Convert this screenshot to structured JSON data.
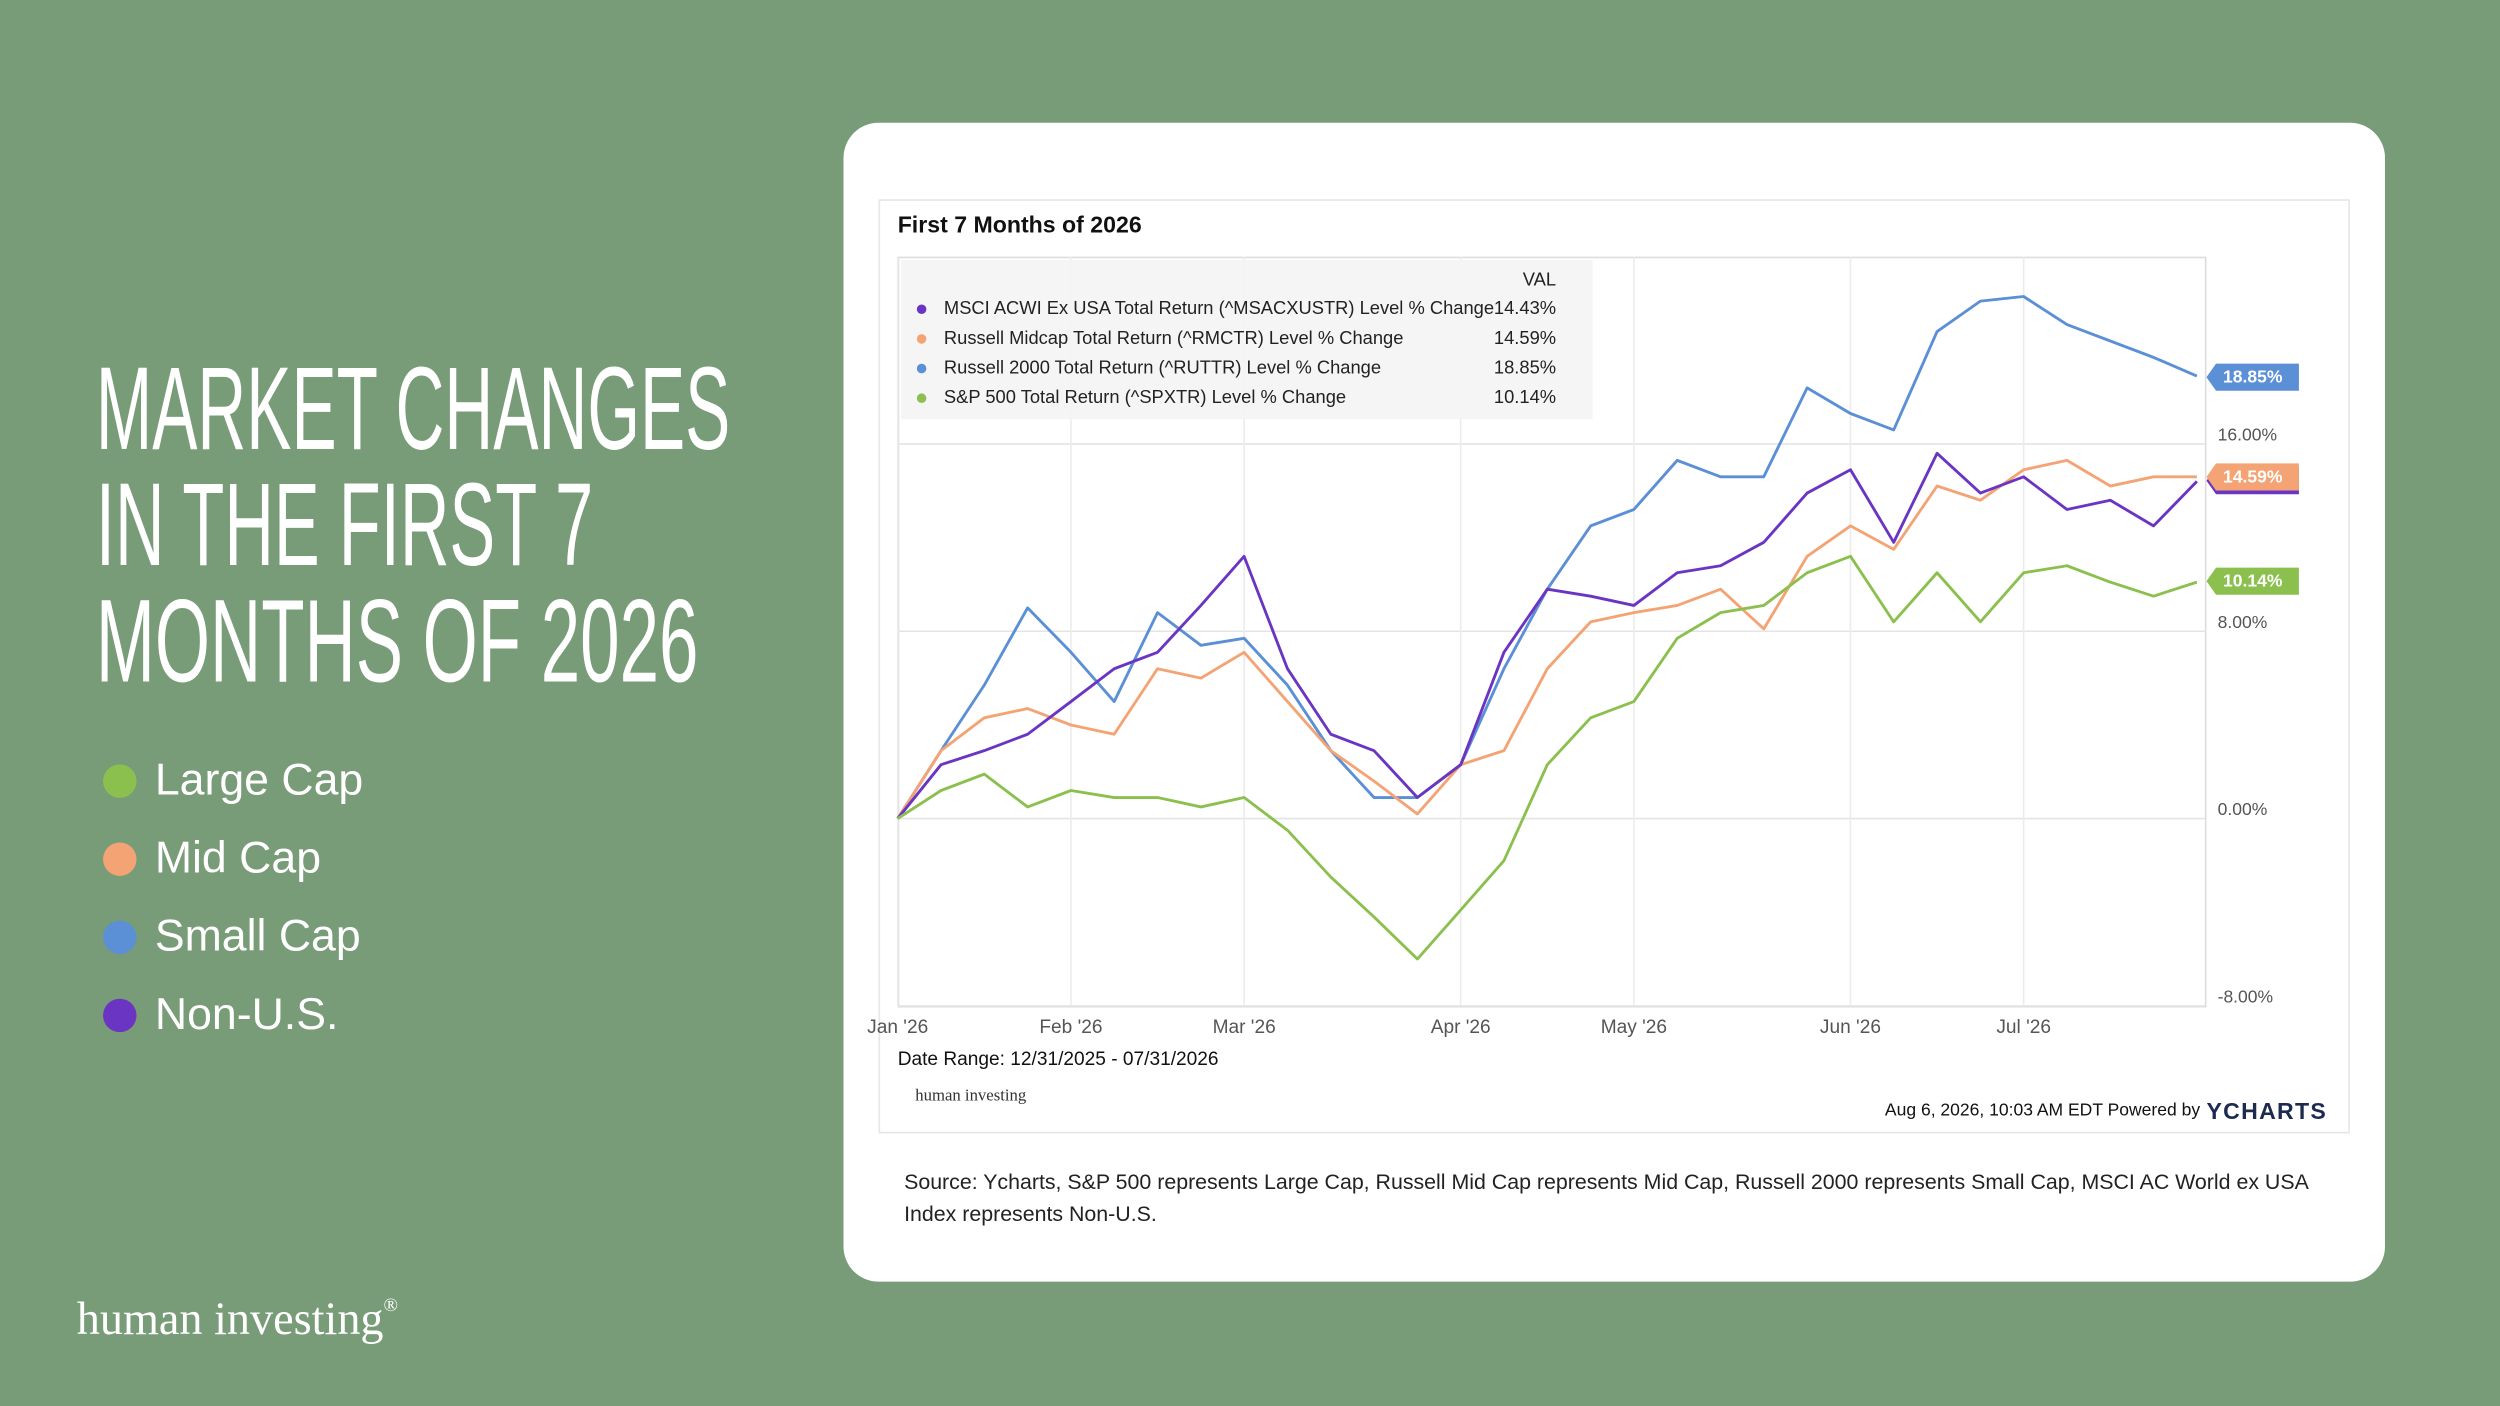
{
  "slide": {
    "title_lines": [
      "MARKET CHANGES",
      "IN THE FIRST 7",
      "MONTHS OF 2026"
    ],
    "legend": [
      {
        "name": "Large Cap",
        "color": "#8cc04e"
      },
      {
        "name": "Mid Cap",
        "color": "#f4a474"
      },
      {
        "name": "Small Cap",
        "color": "#5b8fd6"
      },
      {
        "name": "Non-U.S.",
        "color": "#6a35c2"
      }
    ],
    "source": "Source: Ycharts, S&P 500 represents Large Cap, Russell Mid Cap represents Mid Cap, Russell 2000 represents Small Cap, MSCI AC World ex USA Index represents Non-U.S.",
    "logo": "human investing",
    "logo_mark": "®"
  },
  "chart_data": {
    "type": "line",
    "title": "First 7 Months of 2026",
    "legend_header": "VAL",
    "date_range": "Date Range: 12/31/2025 - 07/31/2026",
    "watermark": "human investing",
    "timestamp": "Aug 6, 2026, 10:03 AM EDT Powered by",
    "brand": "YCHARTS",
    "categories": [
      "Jan '26",
      null,
      null,
      null,
      "Feb '26",
      null,
      null,
      null,
      "Mar '26",
      null,
      null,
      null,
      null,
      "Apr '26",
      null,
      null,
      null,
      "May '26",
      null,
      null,
      null,
      null,
      "Jun '26",
      null,
      null,
      null,
      "Jul '26",
      null,
      null,
      null,
      null
    ],
    "ylim": [
      -8,
      24
    ],
    "yticks": [
      {
        "value": -8,
        "label": "-8.00%"
      },
      {
        "value": 0,
        "label": "0.00%"
      },
      {
        "value": 8,
        "label": "8.00%"
      },
      {
        "value": 16,
        "label": "16.00%"
      }
    ],
    "grid": true,
    "series": [
      {
        "name": "MSCI ACWI Ex USA Total Return (^MSACXUSTR) Level % Change",
        "color": "#6a35c2",
        "end_value": 14.43,
        "end_label": "14.43%",
        "values": [
          0,
          2.3,
          2.9,
          3.6,
          5.0,
          6.4,
          7.1,
          9.1,
          11.2,
          6.4,
          3.6,
          2.9,
          0.9,
          2.3,
          7.1,
          9.8,
          9.5,
          9.1,
          10.5,
          10.8,
          11.8,
          13.9,
          14.9,
          11.8,
          15.6,
          13.9,
          14.6,
          13.2,
          13.6,
          12.5,
          14.4
        ]
      },
      {
        "name": "Russell Midcap Total Return (^RMCTR) Level % Change",
        "color": "#f4a474",
        "end_value": 14.59,
        "end_label": "14.59%",
        "values": [
          0,
          2.9,
          4.3,
          4.7,
          4.0,
          3.6,
          6.4,
          6.0,
          7.1,
          5.0,
          2.9,
          1.6,
          0.2,
          2.3,
          2.9,
          6.4,
          8.4,
          8.8,
          9.1,
          9.8,
          8.1,
          11.2,
          12.5,
          11.5,
          14.2,
          13.6,
          14.9,
          15.3,
          14.2,
          14.6,
          14.6
        ]
      },
      {
        "name": "Russell 2000 Total Return (^RUTTR) Level % Change",
        "color": "#5b8fd6",
        "end_value": 18.85,
        "end_label": "18.85%",
        "values": [
          0,
          2.9,
          5.7,
          9.0,
          7.1,
          5.0,
          8.8,
          7.4,
          7.7,
          5.7,
          2.9,
          0.9,
          0.9,
          2.3,
          6.4,
          9.8,
          12.5,
          13.2,
          15.3,
          14.6,
          14.6,
          18.4,
          17.3,
          16.6,
          20.8,
          22.1,
          22.3,
          21.1,
          20.4,
          19.7,
          18.9
        ]
      },
      {
        "name": "S&P 500 Total Return (^SPXTR) Level % Change",
        "color": "#8cc04e",
        "end_value": 10.14,
        "end_label": "10.14%",
        "values": [
          0,
          1.2,
          1.9,
          0.5,
          1.2,
          0.9,
          0.9,
          0.5,
          0.9,
          -0.5,
          -2.5,
          -4.2,
          -6.0,
          -3.9,
          -1.8,
          2.3,
          4.3,
          5.0,
          7.7,
          8.8,
          9.1,
          10.5,
          11.2,
          8.4,
          10.5,
          8.4,
          10.5,
          10.8,
          10.1,
          9.5,
          10.1
        ]
      }
    ]
  }
}
